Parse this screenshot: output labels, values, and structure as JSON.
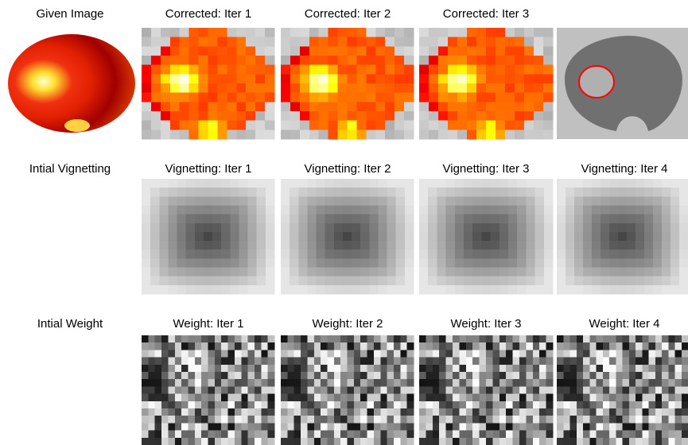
{
  "rows": [
    {
      "labels": [
        "Given Image",
        "Corrected: Iter 1",
        "Corrected: Iter 2",
        "Corrected: Iter 3"
      ]
    },
    {
      "labels": [
        "Intial Vignetting",
        "Vignetting: Iter 1",
        "Vignetting: Iter 2",
        "Vignetting: Iter 3",
        "Vignetting: Iter 4"
      ]
    },
    {
      "labels": [
        "Intial Weight",
        "Weight: Iter 1",
        "Weight: Iter 2",
        "Weight: Iter 3",
        "Weight: Iter 4"
      ]
    }
  ]
}
